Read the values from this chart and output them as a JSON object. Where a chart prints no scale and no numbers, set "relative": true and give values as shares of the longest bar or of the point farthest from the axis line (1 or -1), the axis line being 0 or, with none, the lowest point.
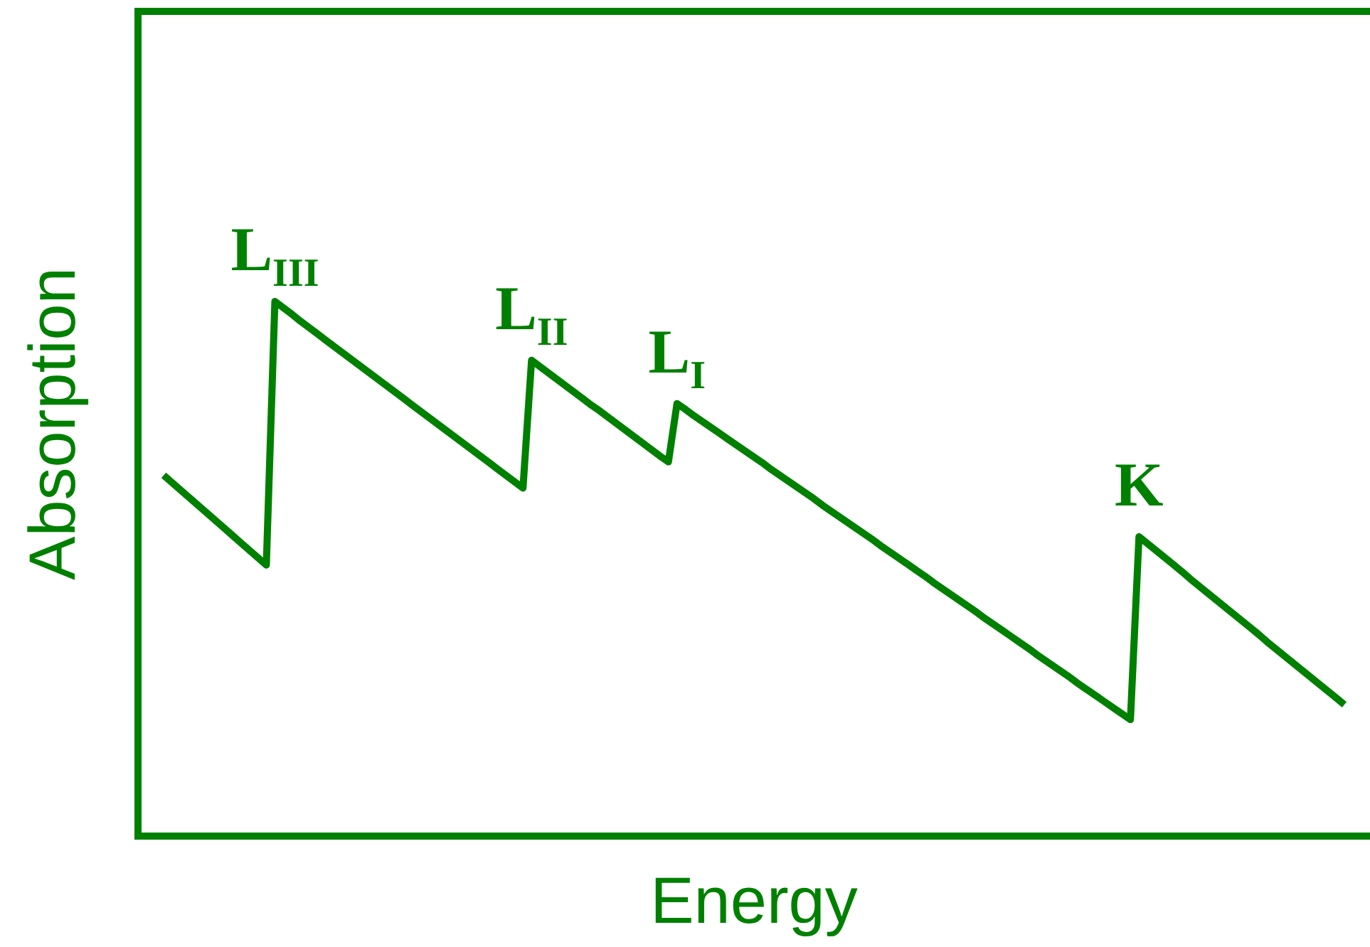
{
  "chart_data": {
    "type": "line",
    "xlabel": "Energy",
    "ylabel": "Absorption",
    "relative": true,
    "tick_labels": false,
    "marker": "none",
    "categories": [
      null,
      null,
      null,
      null,
      null,
      null,
      null,
      null,
      null,
      null,
      null,
      null,
      null,
      null,
      null,
      null,
      null,
      null,
      null,
      null,
      null,
      null,
      null,
      null,
      null,
      null,
      null,
      null,
      null,
      null,
      null,
      null,
      null,
      null,
      null,
      null,
      null,
      null,
      null,
      null,
      null,
      null,
      null,
      null,
      null,
      null,
      null,
      null,
      null,
      null,
      null,
      null,
      null,
      null,
      null,
      null,
      null,
      null,
      null,
      null,
      null,
      null,
      null,
      null,
      null,
      null,
      null,
      null,
      null,
      null,
      null,
      null,
      null,
      null,
      null,
      null,
      null,
      null,
      null,
      null,
      null,
      null,
      null,
      null,
      null,
      null,
      null,
      null,
      null,
      null,
      null,
      null,
      null,
      null,
      null,
      null,
      null,
      null,
      null,
      null,
      null,
      null,
      null,
      null,
      null,
      null,
      null,
      null,
      null,
      null,
      null,
      null,
      null,
      null,
      null,
      null,
      null,
      null,
      null,
      null,
      null,
      null,
      null,
      null,
      null,
      null,
      null,
      null,
      null,
      null,
      null,
      null,
      null,
      null,
      null,
      null,
      null,
      null,
      null,
      null,
      null,
      null,
      null,
      null,
      null
    ],
    "series": [
      {
        "color": "#008000",
        "values": [
          null,
          null,
          null,
          0.675,
          0.661,
          0.647,
          0.633,
          0.619,
          0.605,
          0.591,
          0.577,
          0.563,
          0.549,
          0.535,
          0.521,
          0.507,
          1.0,
          0.988,
          0.976,
          0.963,
          0.951,
          0.939,
          0.927,
          0.915,
          0.903,
          0.891,
          0.879,
          0.867,
          0.855,
          0.843,
          0.831,
          0.819,
          0.807,
          0.795,
          0.783,
          0.771,
          0.759,
          0.747,
          0.735,
          0.723,
          0.711,
          0.699,
          0.687,
          0.675,
          0.663,
          0.651,
          0.89,
          0.878,
          0.866,
          0.854,
          0.842,
          0.83,
          0.818,
          0.806,
          0.795,
          0.783,
          0.771,
          0.759,
          0.747,
          0.735,
          0.723,
          0.711,
          0.7,
          0.809,
          0.798,
          0.786,
          0.775,
          0.764,
          0.753,
          0.742,
          0.731,
          0.72,
          0.709,
          0.698,
          0.686,
          0.675,
          0.664,
          0.653,
          0.642,
          0.631,
          0.619,
          0.608,
          0.597,
          0.586,
          0.575,
          0.564,
          0.553,
          0.541,
          0.53,
          0.519,
          0.508,
          0.497,
          0.486,
          0.474,
          0.463,
          0.452,
          0.441,
          0.43,
          0.419,
          0.407,
          0.396,
          0.385,
          0.374,
          0.363,
          0.352,
          0.34,
          0.329,
          0.318,
          0.307,
          0.296,
          0.284,
          0.273,
          0.262,
          0.251,
          0.24,
          0.229,
          0.218,
          0.56,
          0.547,
          0.534,
          0.521,
          0.508,
          0.495,
          0.481,
          0.468,
          0.455,
          0.442,
          0.429,
          0.416,
          0.403,
          0.39,
          0.377,
          0.363,
          0.35,
          0.337,
          0.324,
          0.311,
          0.298,
          0.285,
          0.272,
          0.259,
          0.246,
          null,
          null,
          null
        ]
      }
    ],
    "annotations": [
      {
        "text": "L$_{III}$",
        "y": 1.0
      },
      {
        "text": "L$_{II}$",
        "y": 0.89
      },
      {
        "text": "L$_{I}$",
        "y": 0.809
      },
      {
        "text": "K",
        "y": 0.56
      }
    ]
  }
}
